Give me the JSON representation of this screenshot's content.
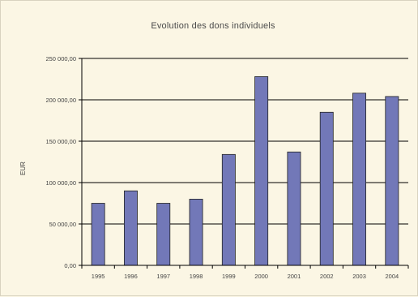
{
  "chart_data": {
    "type": "bar",
    "title": "Evolution des dons individuels",
    "ylabel": "EUR",
    "xlabel": "",
    "categories": [
      "1995",
      "1996",
      "1997",
      "1998",
      "1999",
      "2000",
      "2001",
      "2002",
      "2003",
      "2004"
    ],
    "values": [
      75000,
      90000,
      75000,
      80000,
      134000,
      228000,
      137000,
      185000,
      208000,
      204000
    ],
    "ylim": [
      0,
      250000
    ],
    "yticks": [
      0,
      50000,
      100000,
      150000,
      200000,
      250000
    ],
    "ytick_labels": [
      "0,00",
      "50 000,00",
      "100 000,00",
      "150 000,00",
      "200 000,00",
      "250 000,00"
    ],
    "bar_color": "#7278b8",
    "background_color": "#fbf6e4",
    "grid": true,
    "legend": "none"
  }
}
